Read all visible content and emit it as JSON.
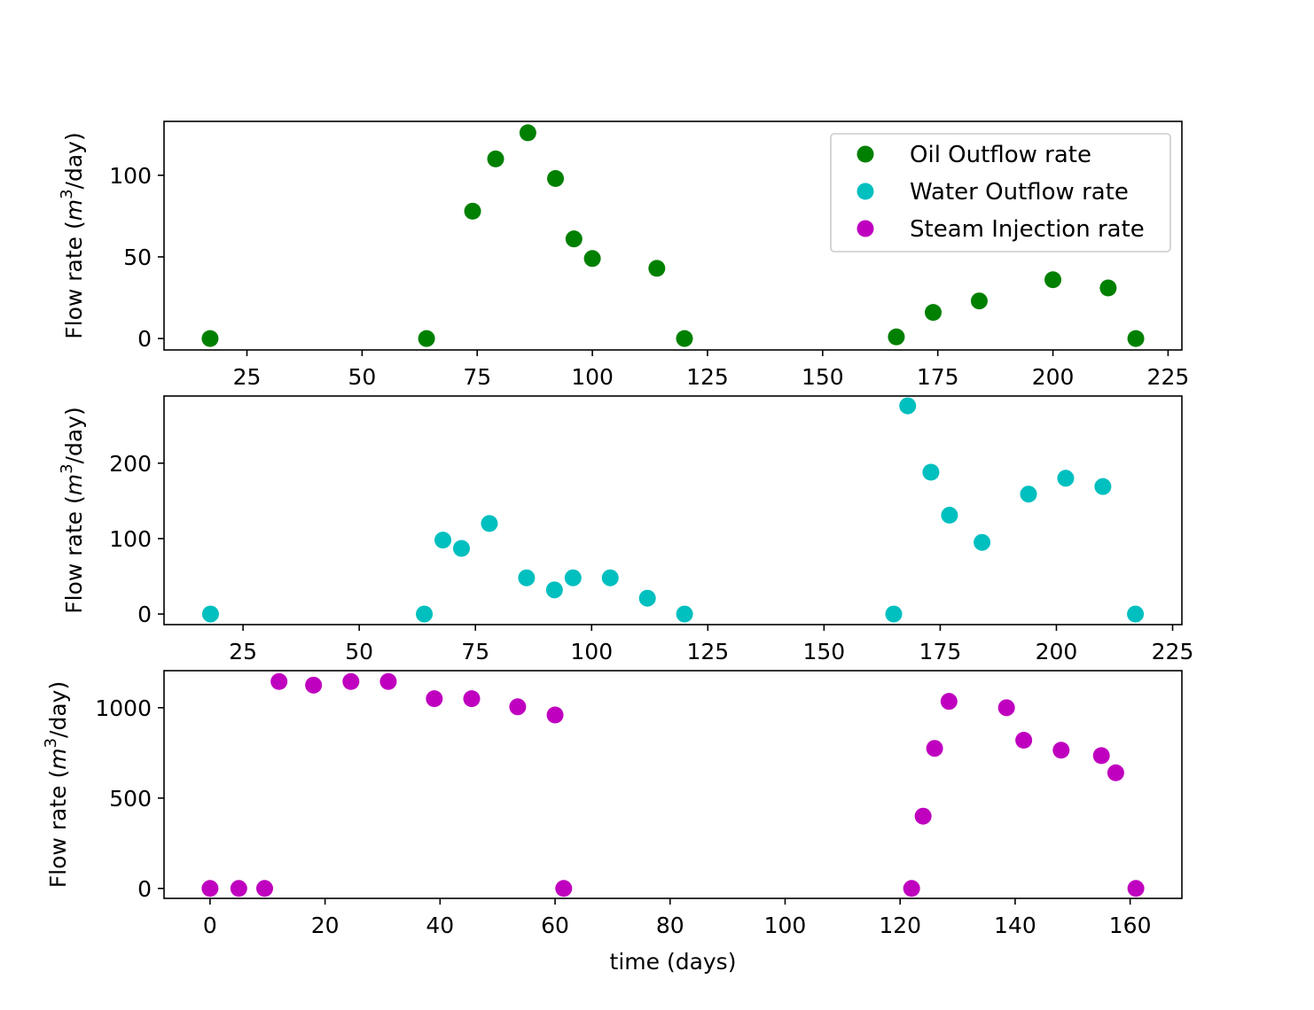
{
  "chart_data": [
    {
      "type": "scatter",
      "series": [
        {
          "name": "Oil Outflow rate",
          "x": [
            17,
            64,
            74,
            79,
            86,
            92,
            96,
            100,
            114,
            120,
            166,
            174,
            184,
            200,
            212,
            218
          ],
          "y": [
            0,
            0,
            78,
            110,
            126,
            98,
            61,
            49,
            43,
            0,
            1,
            16,
            23,
            36,
            31,
            0
          ]
        }
      ],
      "ylabel": "Flow rate ($m^3$/day)",
      "xticks": [
        25,
        50,
        75,
        100,
        125,
        150,
        175,
        200,
        225
      ],
      "yticks": [
        0,
        50,
        100
      ],
      "xlim": [
        7,
        228
      ],
      "ylim": [
        -7,
        133
      ],
      "grid": false,
      "legend": "top-right"
    },
    {
      "type": "scatter",
      "series": [
        {
          "name": "Water Outflow rate",
          "x": [
            18,
            64,
            68,
            72,
            78,
            86,
            92,
            96,
            104,
            112,
            120,
            165,
            168,
            173,
            177,
            184,
            194,
            202,
            210,
            217
          ],
          "y": [
            0,
            0,
            98,
            87,
            120,
            48,
            32,
            48,
            48,
            21,
            0,
            0,
            276,
            188,
            131,
            95,
            159,
            180,
            169,
            0
          ]
        }
      ],
      "ylabel": "Flow rate ($m^3$/day)",
      "xticks": [
        25,
        50,
        75,
        100,
        125,
        150,
        175,
        200,
        225
      ],
      "yticks": [
        0,
        100,
        200
      ],
      "xlim": [
        8,
        227
      ],
      "ylim": [
        -14,
        289
      ],
      "grid": false
    },
    {
      "type": "scatter",
      "series": [
        {
          "name": "Steam Injection rate",
          "x": [
            0,
            5,
            9.5,
            12,
            18,
            24.5,
            31,
            39,
            45.5,
            53.5,
            60,
            61.5,
            122,
            124,
            126,
            128.5,
            138.5,
            141.5,
            148,
            155,
            157.5,
            161
          ],
          "y": [
            0,
            0,
            0,
            1145,
            1125,
            1145,
            1145,
            1050,
            1050,
            1005,
            960,
            0,
            0,
            400,
            775,
            1035,
            1000,
            820,
            765,
            735,
            640,
            0
          ]
        }
      ],
      "xlabel": "time (days)",
      "ylabel": "Flow rate ($m^3$/day)",
      "xticks": [
        0,
        20,
        40,
        60,
        80,
        100,
        120,
        140,
        160
      ],
      "yticks": [
        0,
        500,
        1000
      ],
      "xlim": [
        -8,
        169
      ],
      "ylim": [
        -55,
        1205
      ],
      "grid": false
    }
  ],
  "legend": {
    "entries": [
      {
        "label": "Oil Outflow rate",
        "color": "#008000"
      },
      {
        "label": "Water Outflow rate",
        "color": "#00bfbf"
      },
      {
        "label": "Steam Injection rate",
        "color": "#bf00bf"
      }
    ]
  },
  "colors": [
    "#008000",
    "#00bfbf",
    "#bf00bf"
  ],
  "ylabel_parts": {
    "prefix": "Flow rate (",
    "symbol": "m",
    "exponent": "3",
    "suffix": "/day)"
  }
}
